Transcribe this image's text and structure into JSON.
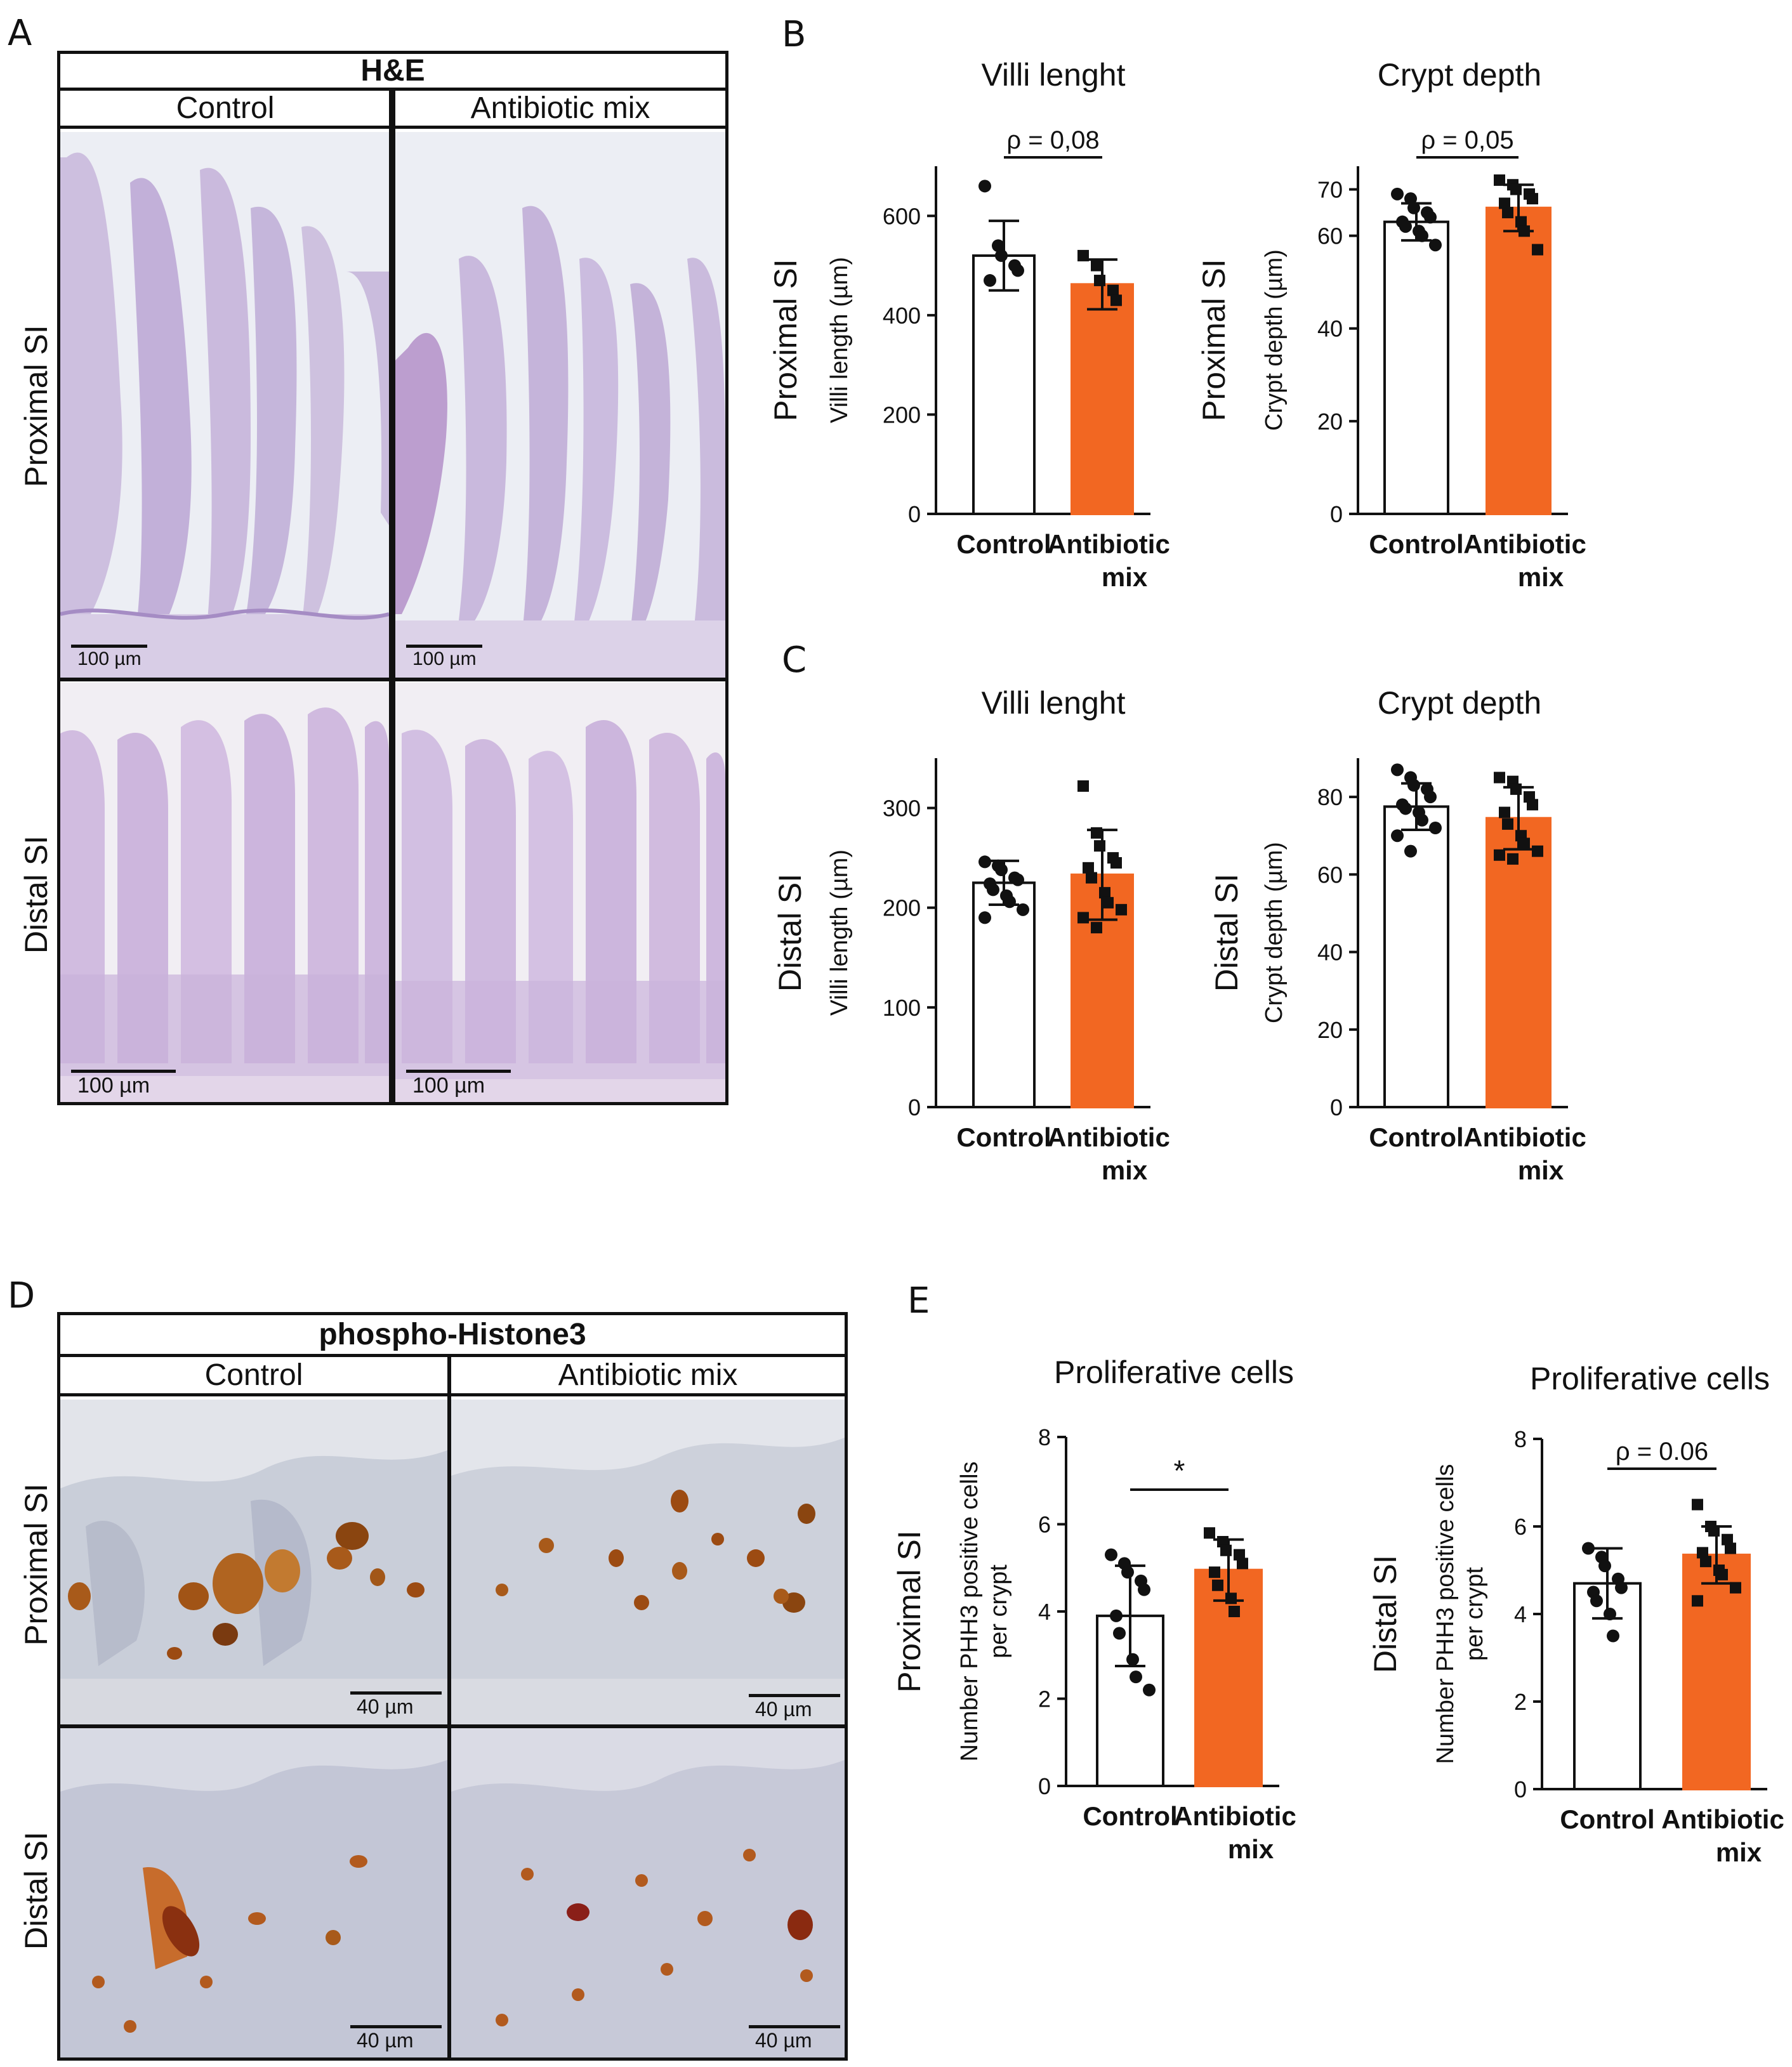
{
  "panel_letters": {
    "a": "A",
    "b": "B",
    "c": "C",
    "d": "D",
    "e": "E"
  },
  "panel_a": {
    "stain": "H&E",
    "col_control": "Control",
    "col_treated": "Antibiotic mix",
    "row_proximal": "Proximal SI",
    "row_distal": "Distal SI",
    "scalebar_small": "100 µm",
    "scalebar_large": "100 µm"
  },
  "panel_d": {
    "stain": "phospho-Histone3",
    "col_control": "Control",
    "col_treated": "Antibiotic mix",
    "row_proximal": "Proximal SI",
    "row_distal": "Distal SI",
    "scalebar": "40 µm"
  },
  "colors": {
    "control_fill": "#ffffff",
    "treated_fill": "#f26722",
    "axis": "#111111",
    "he_background": "#e9ecf2",
    "he_tissue": "#b49ccc",
    "ihc_background": "#c8cdd8",
    "ihc_nuclei": "#9c4b12"
  },
  "chart_data": [
    {
      "id": "B1",
      "type": "bar",
      "title": "Villi lenght",
      "row_label": "Proximal SI",
      "ylabel": "Villi length (µm)",
      "categories": [
        "Control",
        "Antibiotic mix"
      ],
      "category_lines": [
        [
          "Control"
        ],
        [
          "Antibiotic",
          "mix"
        ]
      ],
      "values": [
        520,
        462
      ],
      "sd": [
        70,
        50
      ],
      "ylim": [
        0,
        700
      ],
      "yticks": [
        0,
        200,
        400,
        600
      ],
      "annotation": "ρ = 0,08",
      "points": [
        [
          660,
          540,
          520,
          500,
          490,
          470
        ],
        [
          520,
          500,
          470,
          450,
          430
        ]
      ]
    },
    {
      "id": "B2",
      "type": "bar",
      "title": "Crypt depth",
      "row_label": "Proximal SI",
      "ylabel": "Crypt depth (µm)",
      "categories": [
        "Control",
        "Antibiotic mix"
      ],
      "category_lines": [
        [
          "Control"
        ],
        [
          "Antibiotic",
          "mix"
        ]
      ],
      "values": [
        63,
        66
      ],
      "sd": [
        4,
        5
      ],
      "ylim": [
        0,
        75
      ],
      "yticks": [
        0,
        20,
        40,
        60,
        70
      ],
      "annotation": "ρ = 0,05",
      "points": [
        [
          69,
          68,
          66,
          65,
          64,
          63,
          62,
          61,
          60,
          58
        ],
        [
          72,
          71,
          70,
          69,
          68,
          67,
          65,
          63,
          61,
          57
        ]
      ]
    },
    {
      "id": "C1",
      "type": "bar",
      "title": "Villi lenght",
      "row_label": "Distal SI",
      "ylabel": "Villi length (µm)",
      "categories": [
        "Control",
        "Antibiotic mix"
      ],
      "category_lines": [
        [
          "Control"
        ],
        [
          "Antibiotic",
          "mix"
        ]
      ],
      "values": [
        225,
        233
      ],
      "sd": [
        22,
        45
      ],
      "ylim": [
        0,
        350
      ],
      "yticks": [
        0,
        100,
        200,
        300
      ],
      "annotation": "",
      "points": [
        [
          246,
          242,
          238,
          230,
          228,
          224,
          218,
          212,
          206,
          198,
          190
        ],
        [
          322,
          275,
          262,
          250,
          245,
          240,
          230,
          215,
          205,
          198,
          190,
          180
        ]
      ]
    },
    {
      "id": "C2",
      "type": "bar",
      "title": "Crypt depth",
      "row_label": "Distal SI",
      "ylabel": "Crypt depth (µm)",
      "categories": [
        "Control",
        "Antibiotic mix"
      ],
      "category_lines": [
        [
          "Control"
        ],
        [
          "Antibiotic",
          "mix"
        ]
      ],
      "values": [
        77.5,
        74.5
      ],
      "sd": [
        6,
        8
      ],
      "ylim": [
        0,
        90
      ],
      "yticks": [
        0,
        20,
        40,
        60,
        80
      ],
      "annotation": "",
      "points": [
        [
          87,
          85,
          83,
          82,
          80,
          78,
          77,
          76,
          74,
          72,
          70,
          66
        ],
        [
          85,
          84,
          82,
          80,
          78,
          76,
          73,
          70,
          68,
          66,
          65,
          64
        ]
      ]
    },
    {
      "id": "E1",
      "type": "bar",
      "title": "Proliferative cells",
      "row_label": "Proximal SI",
      "ylabel": [
        "Number PHH3 positive cells",
        "per crypt"
      ],
      "categories": [
        "Control",
        "Antibiotic mix"
      ],
      "category_lines": [
        [
          "Control"
        ],
        [
          "Antibiotic",
          "mix"
        ]
      ],
      "values": [
        3.9,
        4.95
      ],
      "sd": [
        1.15,
        0.7
      ],
      "ylim": [
        0,
        8
      ],
      "yticks": [
        0,
        2,
        4,
        6,
        8
      ],
      "annotation": "*",
      "points": [
        [
          5.3,
          5.1,
          4.9,
          4.7,
          4.5,
          3.9,
          3.5,
          2.9,
          2.5,
          2.2
        ],
        [
          5.8,
          5.6,
          5.4,
          5.3,
          5.1,
          4.9,
          4.6,
          4.3,
          4.0
        ]
      ]
    },
    {
      "id": "E2",
      "type": "bar",
      "title": "Proliferative cells",
      "row_label": "Distal SI",
      "ylabel": [
        "Number PHH3 positive cells",
        "per crypt"
      ],
      "categories": [
        "Control",
        "Antibiotic mix"
      ],
      "category_lines": [
        [
          "Control"
        ],
        [
          "Antibiotic",
          "mix"
        ]
      ],
      "values": [
        4.7,
        5.35
      ],
      "sd": [
        0.8,
        0.65
      ],
      "ylim": [
        0,
        8
      ],
      "yticks": [
        0,
        2,
        4,
        6,
        8
      ],
      "annotation": "ρ = 0.06",
      "points": [
        [
          5.5,
          5.3,
          5.1,
          4.8,
          4.6,
          4.5,
          4.3,
          4.0,
          3.5
        ],
        [
          6.5,
          6.0,
          5.9,
          5.7,
          5.5,
          5.4,
          5.2,
          5.0,
          4.9,
          4.6,
          4.3
        ]
      ]
    }
  ]
}
